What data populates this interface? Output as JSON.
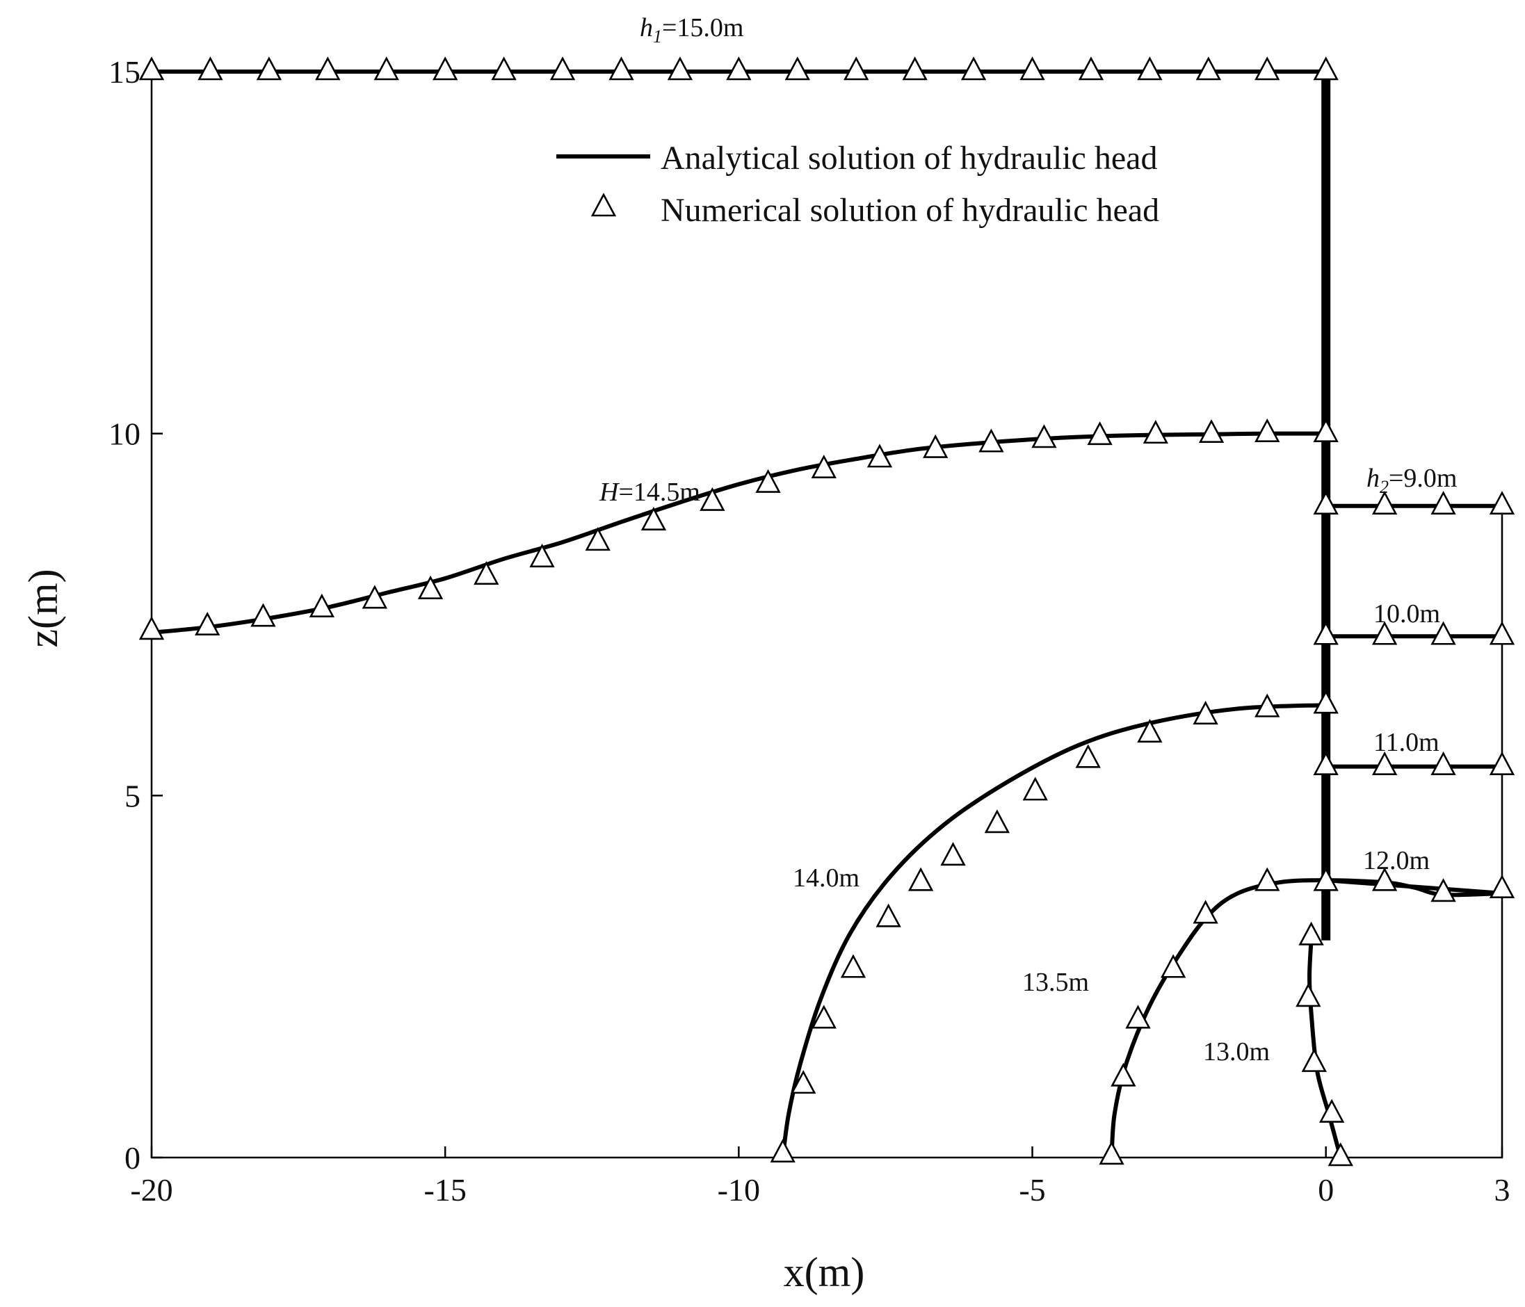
{
  "chart_data": {
    "type": "line",
    "xlabel": "x(m)",
    "ylabel": "z(m)",
    "xlim": [
      -20,
      3
    ],
    "ylim": [
      0,
      15
    ],
    "x_ticks": [
      -20,
      -15,
      -10,
      -5,
      0,
      3
    ],
    "y_ticks": [
      0,
      5,
      10,
      15
    ],
    "grid": false,
    "legend": {
      "position": "top-right",
      "entries": [
        {
          "label": "Analytical solution of hydraulic head",
          "style": "line"
        },
        {
          "label": "Numerical solution of hydraulic head",
          "style": "triangle-marker"
        }
      ]
    },
    "sheet_pile_wall": {
      "x": 0,
      "z_top": 15,
      "z_bottom": 3.0
    },
    "series": [
      {
        "contour": "15.0",
        "label": "h1=15.0m",
        "label_math": {
          "base": "h",
          "sub": "1",
          "rest": "=15.0m"
        },
        "line": [
          [
            -20,
            15
          ],
          [
            0,
            15
          ]
        ],
        "markers": [
          [
            -20,
            15
          ],
          [
            -19,
            15
          ],
          [
            -18,
            15
          ],
          [
            -17,
            15
          ],
          [
            -16,
            15
          ],
          [
            -15,
            15
          ],
          [
            -14,
            15
          ],
          [
            -13,
            15
          ],
          [
            -12,
            15
          ],
          [
            -11,
            15
          ],
          [
            -10,
            15
          ],
          [
            -9,
            15
          ],
          [
            -8,
            15
          ],
          [
            -7,
            15
          ],
          [
            -6,
            15
          ],
          [
            -5,
            15
          ],
          [
            -4,
            15
          ],
          [
            -3,
            15
          ],
          [
            -2,
            15
          ],
          [
            -1,
            15
          ],
          [
            0,
            15
          ]
        ]
      },
      {
        "contour": "14.5",
        "label": "H=14.5m",
        "label_math": {
          "base": "H",
          "sub": "",
          "rest": "=14.5m"
        },
        "line": [
          [
            -20,
            7.25
          ],
          [
            -19,
            7.33
          ],
          [
            -18,
            7.45
          ],
          [
            -17,
            7.6
          ],
          [
            -16,
            7.8
          ],
          [
            -15,
            8.0
          ],
          [
            -14,
            8.27
          ],
          [
            -13,
            8.5
          ],
          [
            -12,
            8.78
          ],
          [
            -11,
            9.05
          ],
          [
            -10,
            9.3
          ],
          [
            -9,
            9.5
          ],
          [
            -8,
            9.65
          ],
          [
            -7,
            9.78
          ],
          [
            -6,
            9.86
          ],
          [
            -5,
            9.92
          ],
          [
            -4,
            9.96
          ],
          [
            -3,
            9.98
          ],
          [
            -2,
            9.99
          ],
          [
            -1,
            10.0
          ],
          [
            0,
            10.0
          ]
        ],
        "markers": [
          [
            -20,
            7.27
          ],
          [
            -19.05,
            7.33
          ],
          [
            -18.1,
            7.45
          ],
          [
            -17.1,
            7.58
          ],
          [
            -16.2,
            7.7
          ],
          [
            -15.25,
            7.83
          ],
          [
            -14.3,
            8.03
          ],
          [
            -13.35,
            8.27
          ],
          [
            -12.4,
            8.5
          ],
          [
            -11.45,
            8.78
          ],
          [
            -10.45,
            9.05
          ],
          [
            -9.5,
            9.3
          ],
          [
            -8.55,
            9.5
          ],
          [
            -7.6,
            9.65
          ],
          [
            -6.65,
            9.78
          ],
          [
            -5.7,
            9.86
          ],
          [
            -4.8,
            9.92
          ],
          [
            -3.85,
            9.96
          ],
          [
            -2.9,
            9.98
          ],
          [
            -1.95,
            9.99
          ],
          [
            -1,
            10.0
          ],
          [
            0,
            10.0
          ]
        ]
      },
      {
        "contour": "14.0",
        "label": "14.0m",
        "line": [
          [
            -9.25,
            0
          ],
          [
            -9.15,
            0.6
          ],
          [
            -8.95,
            1.3
          ],
          [
            -8.6,
            2.2
          ],
          [
            -8.1,
            3.1
          ],
          [
            -7.4,
            3.9
          ],
          [
            -6.5,
            4.6
          ],
          [
            -5.4,
            5.2
          ],
          [
            -4.2,
            5.7
          ],
          [
            -3,
            6.0
          ],
          [
            -1.5,
            6.2
          ],
          [
            0,
            6.25
          ]
        ],
        "markers": [
          [
            -9.25,
            0.05
          ],
          [
            -8.9,
            1.0
          ],
          [
            -8.55,
            1.9
          ],
          [
            -8.05,
            2.6
          ],
          [
            -7.45,
            3.3
          ],
          [
            -6.9,
            3.8
          ],
          [
            -6.35,
            4.15
          ],
          [
            -5.6,
            4.6
          ],
          [
            -4.95,
            5.05
          ],
          [
            -4.05,
            5.5
          ],
          [
            -3,
            5.85
          ],
          [
            -2.05,
            6.1
          ],
          [
            -1.0,
            6.2
          ],
          [
            0,
            6.25
          ]
        ]
      },
      {
        "contour": "13.5",
        "label": "13.5m",
        "line": [
          [
            -3.65,
            0
          ],
          [
            -3.6,
            0.6
          ],
          [
            -3.4,
            1.3
          ],
          [
            -3.0,
            2.1
          ],
          [
            -2.5,
            2.8
          ],
          [
            -2.0,
            3.35
          ],
          [
            -1.5,
            3.65
          ],
          [
            -0.8,
            3.8
          ],
          [
            0,
            3.83
          ],
          [
            1,
            3.8
          ],
          [
            1.5,
            3.73
          ],
          [
            2,
            3.63
          ],
          [
            3,
            3.65
          ]
        ],
        "markers": [
          [
            -3.65,
            0.02
          ],
          [
            -3.45,
            1.1
          ],
          [
            -3.2,
            1.9
          ],
          [
            -2.6,
            2.6
          ],
          [
            -2.05,
            3.35
          ],
          [
            -1.0,
            3.8
          ],
          [
            0,
            3.8
          ],
          [
            1,
            3.8
          ],
          [
            2,
            3.65
          ],
          [
            3,
            3.7
          ]
        ]
      },
      {
        "contour": "13.0",
        "label": "13.0m",
        "line": [
          [
            -0.25,
            3.0
          ],
          [
            -0.28,
            2.5
          ],
          [
            -0.25,
            2.0
          ],
          [
            -0.15,
            1.2
          ],
          [
            0.05,
            0.6
          ],
          [
            0.25,
            0
          ]
        ],
        "markers": [
          [
            -0.25,
            3.05
          ],
          [
            -0.3,
            2.2
          ],
          [
            -0.2,
            1.3
          ],
          [
            0.1,
            0.6
          ],
          [
            0.25,
            0
          ]
        ]
      },
      {
        "contour": "12.0",
        "label": "12.0m",
        "line": [
          [
            0,
            3.83
          ],
          [
            3,
            3.65
          ]
        ],
        "markers": []
      },
      {
        "contour": "11.0",
        "label": "11.0m",
        "line": [
          [
            0,
            5.4
          ],
          [
            3,
            5.4
          ]
        ],
        "markers": [
          [
            0,
            5.4
          ],
          [
            1,
            5.4
          ],
          [
            2,
            5.4
          ],
          [
            3,
            5.4
          ]
        ]
      },
      {
        "contour": "10.0",
        "label": "10.0m",
        "line": [
          [
            0,
            7.2
          ],
          [
            3,
            7.2
          ]
        ],
        "markers": [
          [
            0,
            7.2
          ],
          [
            1,
            7.2
          ],
          [
            2,
            7.2
          ],
          [
            3,
            7.2
          ]
        ]
      },
      {
        "contour": "9.0",
        "label": "h2=9.0m",
        "label_math": {
          "base": "h",
          "sub": "2",
          "rest": "=9.0m"
        },
        "line": [
          [
            0,
            9.0
          ],
          [
            3,
            9.0
          ]
        ],
        "markers": [
          [
            0,
            9.0
          ],
          [
            1,
            9.0
          ],
          [
            2,
            9.0
          ],
          [
            3,
            9.0
          ]
        ]
      }
    ]
  }
}
